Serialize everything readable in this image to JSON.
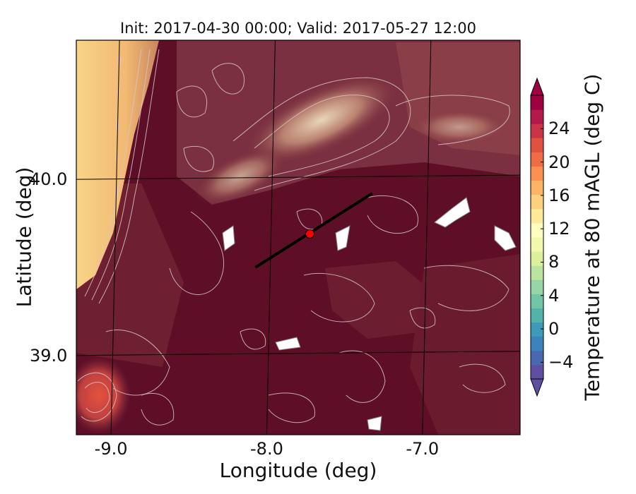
{
  "title": "Init: 2017-04-30 00:00; Valid: 2017-05-27 12:00",
  "map": {
    "xlabel": "Longitude (deg)",
    "ylabel": "Latitude (deg)",
    "xlim": [
      -9.25,
      -6.4
    ],
    "ylim": [
      38.55,
      40.79
    ],
    "xticks": [
      {
        "value": -9.0,
        "label": "-9.0"
      },
      {
        "value": -8.0,
        "label": "-8.0"
      },
      {
        "value": -7.0,
        "label": "-7.0"
      }
    ],
    "yticks": [
      {
        "value": 39.0,
        "label": "39.0"
      },
      {
        "value": 40.0,
        "label": "40.0"
      }
    ],
    "transect": {
      "start": [
        -8.1,
        39.5
      ],
      "end": [
        -7.35,
        39.92
      ],
      "color": "#000000"
    },
    "site_marker": {
      "lon": -7.75,
      "lat": 39.69,
      "color": "#ff0000"
    },
    "field_colors": {
      "warm": "#5e0e27",
      "mid": "#7a2a38",
      "cool": "#f7c77a",
      "ocean": "#f8d488",
      "hot_spot": "#e4523f"
    }
  },
  "colorbar": {
    "label": "Temperature at 80 mAGL (deg C)",
    "range": [
      -6,
      28
    ],
    "ticks": [
      {
        "value": -4,
        "label": "−4"
      },
      {
        "value": 0,
        "label": "0"
      },
      {
        "value": 4,
        "label": "4"
      },
      {
        "value": 8,
        "label": "8"
      },
      {
        "value": 12,
        "label": "12"
      },
      {
        "value": 16,
        "label": "16"
      },
      {
        "value": 20,
        "label": "20"
      },
      {
        "value": 24,
        "label": "24"
      }
    ],
    "colors": [
      "#5e4fa2",
      "#4a68ae",
      "#3a84bb",
      "#3d9ab8",
      "#52b3ad",
      "#71c6a5",
      "#98d5a4",
      "#bbe4a0",
      "#dcf09c",
      "#f3f9ac",
      "#fffebe",
      "#fee89a",
      "#fdd080",
      "#fdb466",
      "#f9904f",
      "#f06c44",
      "#e0513f",
      "#cb3448",
      "#b3194b",
      "#9e0142"
    ]
  }
}
